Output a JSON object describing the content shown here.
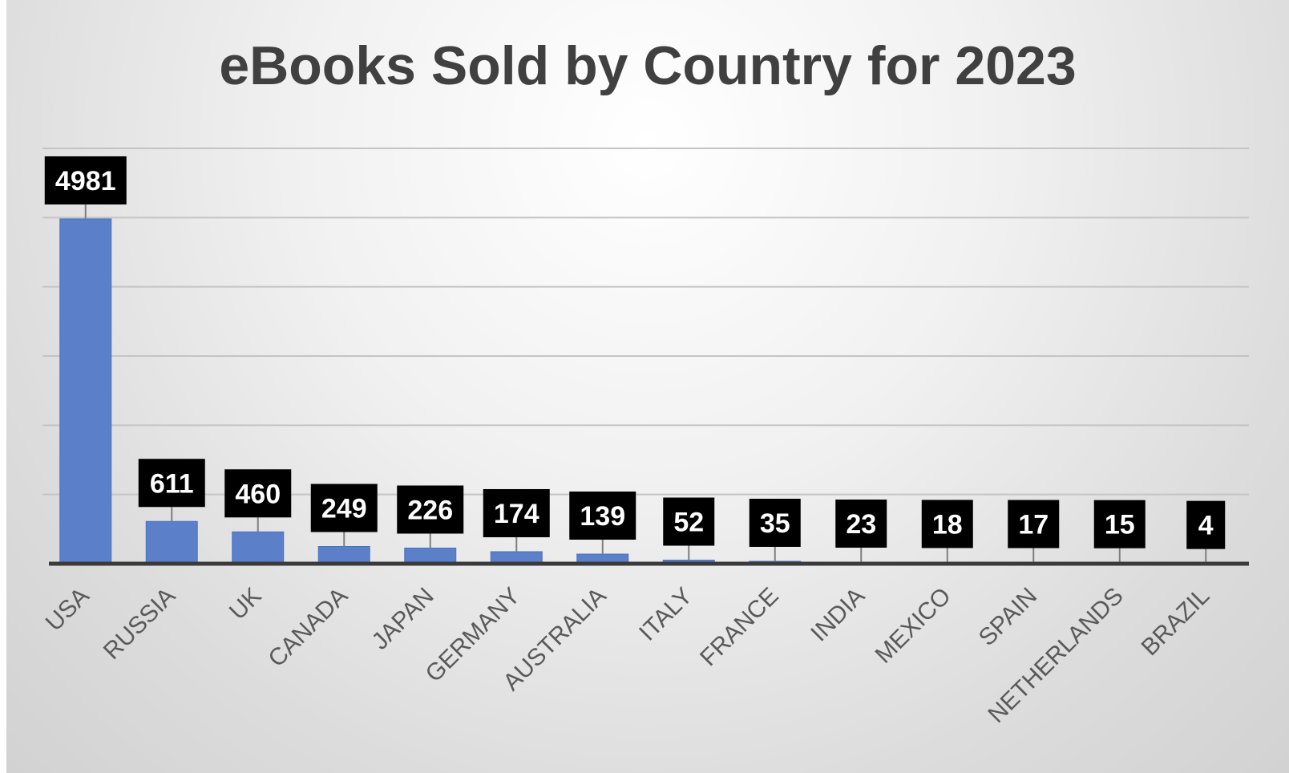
{
  "chart_data": {
    "type": "bar",
    "title": "eBooks Sold by Country for 2023",
    "xlabel": "",
    "ylabel": "",
    "categories": [
      "USA",
      "RUSSIA",
      "UK",
      "CANADA",
      "JAPAN",
      "GERMANY",
      "AUSTRALIA",
      "ITALY",
      "FRANCE",
      "INDIA",
      "MEXICO",
      "SPAIN",
      "NETHERLANDS",
      "BRAZIL"
    ],
    "values": [
      4981,
      611,
      460,
      249,
      226,
      174,
      139,
      52,
      35,
      23,
      18,
      17,
      15,
      4
    ],
    "ylim": [
      0,
      6000
    ],
    "grid": true,
    "legend": "none",
    "bar_color": "#5b80c9",
    "bar_edge_color": "#4a72c0",
    "label_bg_color": "#000000",
    "label_text_color": "#ffffff",
    "title_color": "#404040",
    "tick_label_color": "#595959",
    "gridline_color": "#c4c4c4",
    "axis_color": "#3a3a3a"
  }
}
